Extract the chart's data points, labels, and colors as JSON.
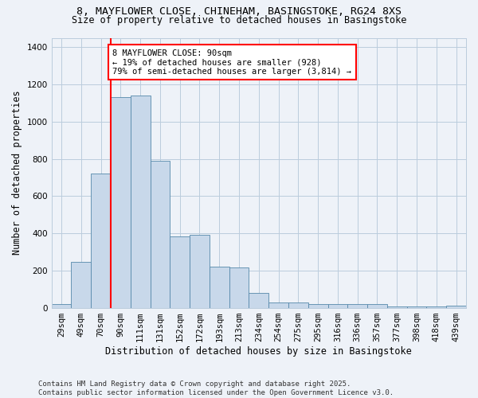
{
  "title_line1": "8, MAYFLOWER CLOSE, CHINEHAM, BASINGSTOKE, RG24 8XS",
  "title_line2": "Size of property relative to detached houses in Basingstoke",
  "xlabel": "Distribution of detached houses by size in Basingstoke",
  "ylabel": "Number of detached properties",
  "categories": [
    "29sqm",
    "49sqm",
    "70sqm",
    "90sqm",
    "111sqm",
    "131sqm",
    "152sqm",
    "172sqm",
    "193sqm",
    "213sqm",
    "234sqm",
    "254sqm",
    "275sqm",
    "295sqm",
    "316sqm",
    "336sqm",
    "357sqm",
    "377sqm",
    "398sqm",
    "418sqm",
    "439sqm"
  ],
  "values": [
    20,
    245,
    720,
    1130,
    1140,
    790,
    385,
    390,
    220,
    215,
    80,
    30,
    30,
    20,
    20,
    20,
    20,
    5,
    5,
    5,
    10
  ],
  "bar_color": "#c8d8ea",
  "bar_edge_color": "#5588aa",
  "highlight_index": 3,
  "annotation_text": "8 MAYFLOWER CLOSE: 90sqm\n← 19% of detached houses are smaller (928)\n79% of semi-detached houses are larger (3,814) →",
  "annotation_box_color": "white",
  "annotation_box_edge_color": "red",
  "vline_color": "red",
  "ylim": [
    0,
    1450
  ],
  "yticks": [
    0,
    200,
    400,
    600,
    800,
    1000,
    1200,
    1400
  ],
  "grid_color": "#bbccdd",
  "background_color": "#eef2f8",
  "footer_text": "Contains HM Land Registry data © Crown copyright and database right 2025.\nContains public sector information licensed under the Open Government Licence v3.0.",
  "font_size_title1": 9.5,
  "font_size_title2": 8.5,
  "font_size_annotation": 7.5,
  "font_size_footer": 6.5,
  "font_size_ticks": 7.5,
  "font_size_labels": 8.5
}
